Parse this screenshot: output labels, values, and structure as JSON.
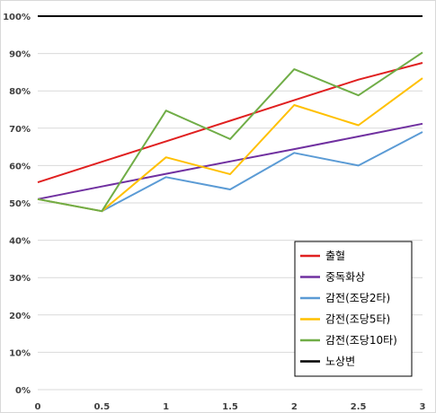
{
  "chart_data": {
    "type": "line",
    "title": "",
    "xlabel": "",
    "ylabel": "",
    "x": [
      0,
      0.5,
      1,
      1.5,
      2,
      2.5,
      3
    ],
    "x_tick_labels": [
      "0",
      "0.5",
      "1",
      "1.5",
      "2",
      "2.5",
      "3"
    ],
    "ylim": [
      0,
      100
    ],
    "y_tick_labels": [
      "0%",
      "10%",
      "20%",
      "30%",
      "40%",
      "50%",
      "60%",
      "70%",
      "80%",
      "90%",
      "100%"
    ],
    "grid": true,
    "legend_position": "bottom-right",
    "series": [
      {
        "name": "출혈",
        "color": "#e02020",
        "values": [
          55.5,
          61.0,
          66.5,
          72.0,
          77.5,
          83.0,
          87.5
        ]
      },
      {
        "name": "중독화상",
        "color": "#7030a0",
        "values": [
          51.0,
          54.4,
          57.8,
          61.1,
          64.4,
          67.8,
          71.2
        ]
      },
      {
        "name": "감전(조당2타)",
        "color": "#5b9bd5",
        "values": [
          51.0,
          47.8,
          56.9,
          53.6,
          63.4,
          60.0,
          69.0
        ]
      },
      {
        "name": "감전(조당5타)",
        "color": "#ffc000",
        "values": [
          51.0,
          47.8,
          62.2,
          57.7,
          76.2,
          70.8,
          83.4
        ]
      },
      {
        "name": "감전(조당10타)",
        "color": "#70ad47",
        "values": [
          51.0,
          47.8,
          74.7,
          67.1,
          85.8,
          78.8,
          90.3
        ]
      },
      {
        "name": "노상변",
        "color": "#000000",
        "values": [
          100,
          100,
          100,
          100,
          100,
          100,
          100
        ]
      }
    ]
  }
}
